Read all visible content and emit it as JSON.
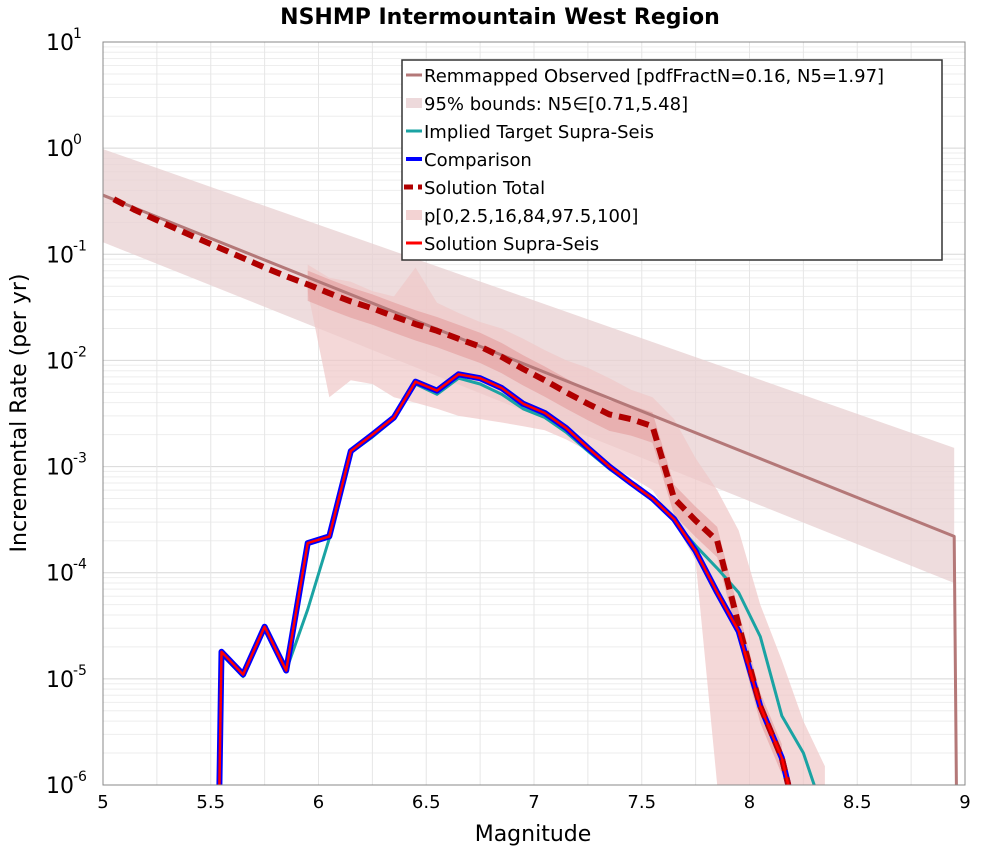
{
  "chart_data": {
    "type": "line",
    "title": "NSHMP Intermountain West Region",
    "xlabel": "Magnitude",
    "ylabel": "Incremental Rate (per yr)",
    "xlim": [
      5,
      9
    ],
    "ylim": [
      1e-06,
      10
    ],
    "yscale": "log",
    "grid": true,
    "legend_position": "top-right",
    "xticks": [
      5,
      5.5,
      6,
      6.5,
      7,
      7.5,
      8,
      8.5,
      9
    ],
    "xtick_labels": [
      "5",
      "5.5",
      "6",
      "6.5",
      "7",
      "7.5",
      "8",
      "8.5",
      "9"
    ],
    "yticks": [
      {
        "value": 1e-06,
        "base": "10",
        "exp": "-6"
      },
      {
        "value": 1e-05,
        "base": "10",
        "exp": "-5"
      },
      {
        "value": 0.0001,
        "base": "10",
        "exp": "-4"
      },
      {
        "value": 0.001,
        "base": "10",
        "exp": "-3"
      },
      {
        "value": 0.01,
        "base": "10",
        "exp": "-2"
      },
      {
        "value": 0.1,
        "base": "10",
        "exp": "-1"
      },
      {
        "value": 1,
        "base": "10",
        "exp": "0"
      },
      {
        "value": 10,
        "base": "10",
        "exp": "1"
      }
    ],
    "colors": {
      "remapped": "#b47878",
      "bounds_fill": "#e8d0d2",
      "implied": "#1aa3a3",
      "comparison": "#0000ff",
      "solution_total": "#b00000",
      "percentile_outer": "#f0c8c8",
      "percentile_inner": "#e08c8c",
      "solution_supra": "#ff0000"
    },
    "series": [
      {
        "name": "Remmapped Observed [pdfFractN=0.16, N5=1.97]",
        "style": "line",
        "color": "#b47878",
        "x": [
          5.0,
          8.95,
          8.96
        ],
        "y": [
          0.36,
          0.00022,
          1e-06
        ]
      },
      {
        "name": "95% bounds: N5∈[0.71,5.48]",
        "style": "band",
        "color": "#e8d0d2",
        "x": [
          5.0,
          8.95
        ],
        "lower": [
          0.13,
          8e-05
        ],
        "upper": [
          0.98,
          0.0015
        ]
      },
      {
        "name": "Implied Target Supra-Seis",
        "style": "line",
        "color": "#1aa3a3",
        "x": [
          5.55,
          5.65,
          5.75,
          5.85,
          5.95,
          6.05,
          6.15,
          6.25,
          6.35,
          6.45,
          6.55,
          6.65,
          6.75,
          6.85,
          6.95,
          7.05,
          7.15,
          7.25,
          7.35,
          7.45,
          7.55,
          7.65,
          7.75,
          7.85,
          7.95,
          8.05,
          8.15,
          8.25,
          8.3
        ],
        "y": [
          1.7e-05,
          1.05e-05,
          3e-05,
          1.2e-05,
          4.5e-05,
          0.00021,
          0.00135,
          0.0019,
          0.0028,
          0.006,
          0.0048,
          0.0068,
          0.006,
          0.0048,
          0.0035,
          0.0029,
          0.0021,
          0.0014,
          0.00095,
          0.00068,
          0.00048,
          0.00031,
          0.00018,
          0.00011,
          6.5e-05,
          2.5e-05,
          4.5e-06,
          2e-06,
          1e-06
        ]
      },
      {
        "name": "Comparison",
        "style": "line",
        "color": "#0000ff",
        "x": [
          5.54,
          5.55,
          5.65,
          5.75,
          5.85,
          5.95,
          6.05,
          6.15,
          6.25,
          6.35,
          6.45,
          6.55,
          6.65,
          6.75,
          6.85,
          6.95,
          7.05,
          7.15,
          7.25,
          7.35,
          7.45,
          7.55,
          7.65,
          7.75,
          7.85,
          7.95,
          8.05,
          8.15,
          8.18
        ],
        "y": [
          1e-06,
          1.8e-05,
          1.1e-05,
          3.1e-05,
          1.2e-05,
          0.00019,
          0.00022,
          0.0014,
          0.002,
          0.0029,
          0.0063,
          0.0052,
          0.0074,
          0.0068,
          0.0055,
          0.0039,
          0.0032,
          0.0023,
          0.0015,
          0.001,
          0.0007,
          0.0005,
          0.00032,
          0.00016,
          6.5e-05,
          2.8e-05,
          5.5e-06,
          1.8e-06,
          1e-06
        ]
      },
      {
        "name": "Solution Total",
        "style": "dashed",
        "color": "#b00000",
        "x": [
          5.05,
          5.15,
          5.25,
          5.35,
          5.45,
          5.55,
          5.65,
          5.75,
          5.85,
          5.95,
          6.05,
          6.15,
          6.25,
          6.35,
          6.45,
          6.55,
          6.65,
          6.75,
          6.85,
          6.95,
          7.05,
          7.15,
          7.25,
          7.35,
          7.45,
          7.55,
          7.65,
          7.75,
          7.85,
          7.95,
          8.05,
          8.15,
          8.18
        ],
        "y": [
          0.33,
          0.26,
          0.21,
          0.17,
          0.138,
          0.113,
          0.092,
          0.075,
          0.062,
          0.052,
          0.043,
          0.036,
          0.031,
          0.026,
          0.022,
          0.019,
          0.016,
          0.0135,
          0.0108,
          0.0083,
          0.0065,
          0.005,
          0.0039,
          0.0031,
          0.0028,
          0.0024,
          0.0005,
          0.00031,
          0.0002,
          3.2e-05,
          5.5e-06,
          1.8e-06,
          1e-06
        ]
      },
      {
        "name": "p[0,2.5,16,84,97.5,100]",
        "style": "percentile-band",
        "color": "#f0c8c8",
        "x": [
          5.95,
          6.05,
          6.15,
          6.25,
          6.35,
          6.45,
          6.55,
          6.65,
          6.75,
          6.85,
          6.95,
          7.05,
          7.15,
          7.25,
          7.35,
          7.45,
          7.55,
          7.65,
          7.75,
          7.85,
          7.95,
          8.05,
          8.15,
          8.25,
          8.35
        ],
        "lower": [
          0.045,
          0.0045,
          0.0065,
          0.006,
          0.0045,
          0.004,
          0.0035,
          0.003,
          0.0028,
          0.0026,
          0.0024,
          0.0022,
          0.0018,
          0.0014,
          0.001,
          0.0008,
          0.0006,
          0.0003,
          0.00013,
          1e-06,
          1e-06,
          1e-06,
          1e-06,
          1e-06,
          1e-06
        ],
        "upper": [
          0.08,
          0.06,
          0.055,
          0.045,
          0.04,
          0.075,
          0.035,
          0.028,
          0.023,
          0.02,
          0.016,
          0.0125,
          0.01,
          0.0085,
          0.0068,
          0.0053,
          0.0045,
          0.0028,
          0.0012,
          0.0006,
          0.00025,
          5e-05,
          1.5e-05,
          4e-06,
          1.5e-06
        ]
      },
      {
        "name": "Solution Supra-Seis",
        "style": "line",
        "color": "#ff0000",
        "x": [
          5.54,
          5.55,
          5.65,
          5.75,
          5.85,
          5.95,
          6.05,
          6.15,
          6.25,
          6.35,
          6.45,
          6.55,
          6.65,
          6.75,
          6.85,
          6.95,
          7.05,
          7.15,
          7.25,
          7.35,
          7.45,
          7.55,
          7.65,
          7.75,
          7.85,
          7.95,
          8.05,
          8.15,
          8.18
        ],
        "y": [
          1e-06,
          1.8e-05,
          1.1e-05,
          3.1e-05,
          1.2e-05,
          0.00019,
          0.00022,
          0.0014,
          0.002,
          0.0029,
          0.0063,
          0.0052,
          0.0074,
          0.0068,
          0.0055,
          0.0039,
          0.0032,
          0.0023,
          0.0015,
          0.001,
          0.0007,
          0.0005,
          0.00032,
          0.00016,
          6.5e-05,
          2.8e-05,
          5.5e-06,
          1.8e-06,
          1e-06
        ]
      }
    ]
  }
}
